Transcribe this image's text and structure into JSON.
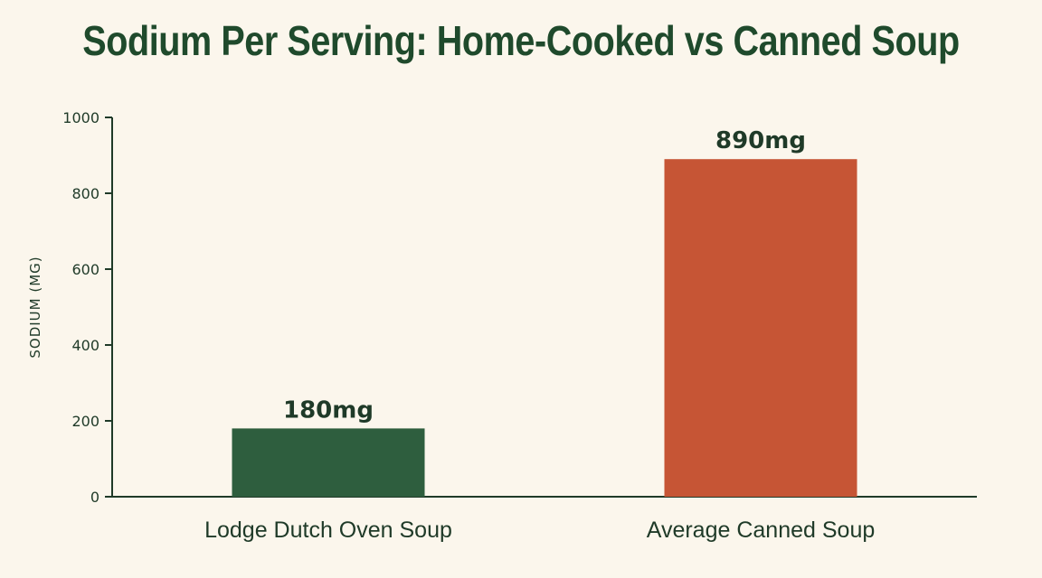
{
  "chart_data": {
    "type": "bar",
    "title": "Sodium Per Serving: Home-Cooked vs Canned Soup",
    "xlabel": "",
    "ylabel": "SODIUM (MG)",
    "ylim": [
      0,
      1000
    ],
    "yticks": [
      0,
      200,
      400,
      600,
      800,
      1000
    ],
    "categories": [
      "Lodge Dutch Oven Soup",
      "Average Canned Soup"
    ],
    "values": [
      180,
      890
    ],
    "data_labels": [
      "180mg",
      "890mg"
    ],
    "colors": [
      "#2e5e3e",
      "#c65535"
    ],
    "grid": false,
    "legend": "none"
  }
}
